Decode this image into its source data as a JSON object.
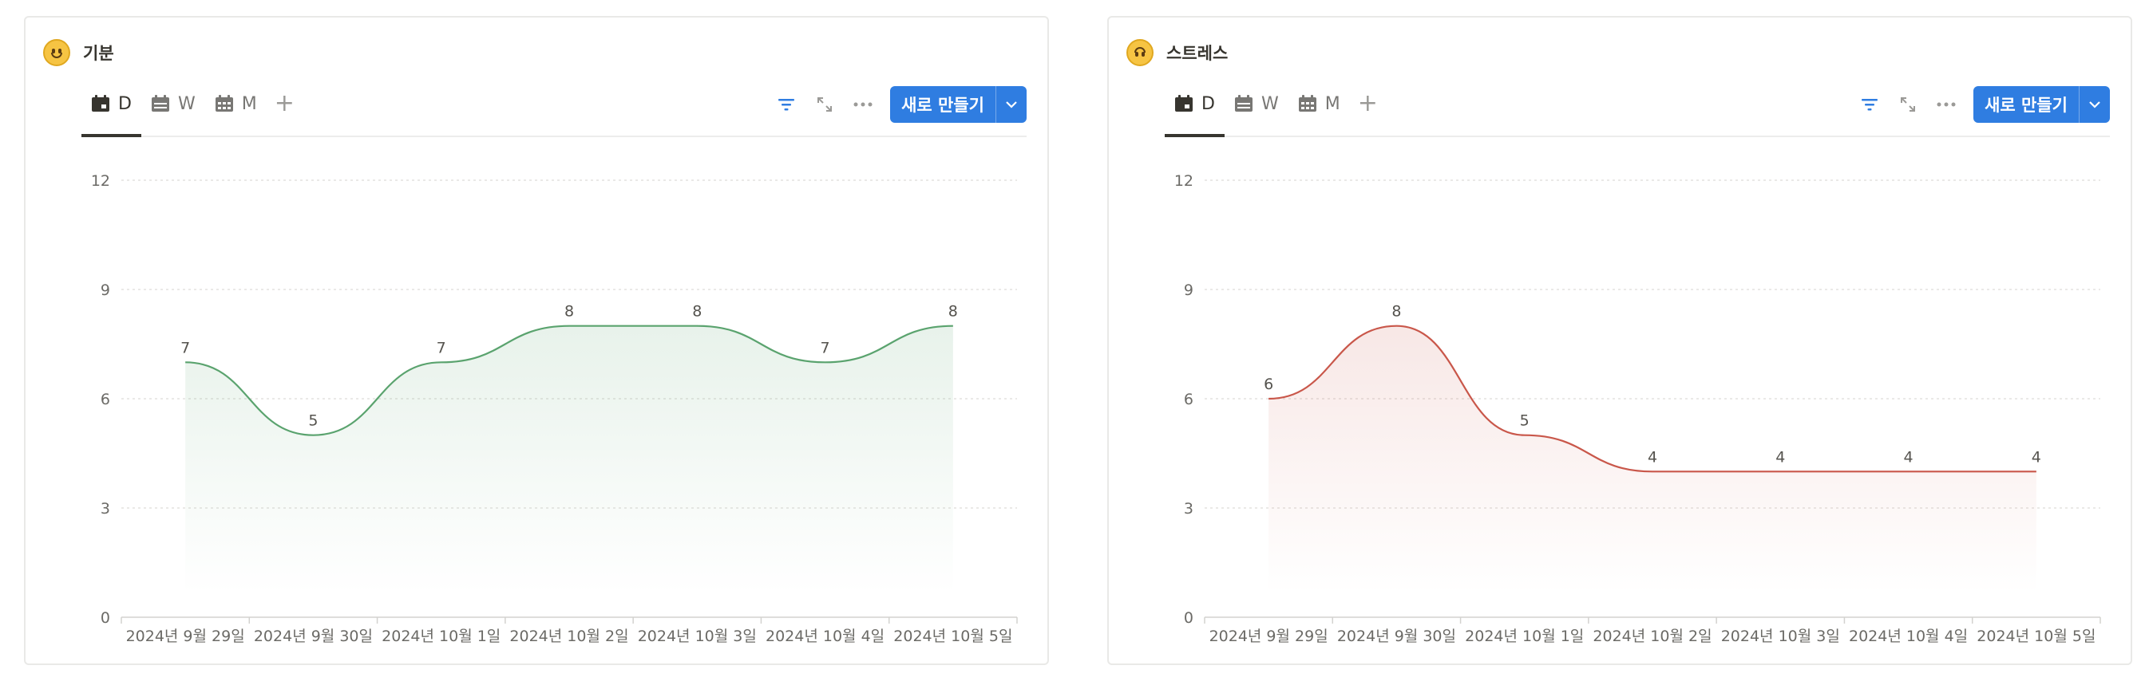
{
  "colors": {
    "accent": "#2f7de1",
    "mood_line": "#5aa36e",
    "stress_line": "#c9574a"
  },
  "cards": [
    {
      "emoji": "slightly-smiling-face",
      "title": "기분",
      "tabs": [
        {
          "label": "D",
          "icon": "calendar-day-icon"
        },
        {
          "label": "W",
          "icon": "calendar-week-icon"
        },
        {
          "label": "M",
          "icon": "calendar-month-icon"
        }
      ],
      "add_tab_label": "+",
      "new_button_label": "새로 만들기",
      "chart_data": {
        "type": "area",
        "categories": [
          "2024년 9월 29일",
          "2024년 9월 30일",
          "2024년 10월 1일",
          "2024년 10월 2일",
          "2024년 10월 3일",
          "2024년 10월 4일",
          "2024년 10월 5일"
        ],
        "values": [
          7,
          5,
          7,
          8,
          8,
          7,
          8
        ],
        "yticks": [
          0,
          3,
          6,
          9,
          12
        ],
        "ylim": [
          0,
          12
        ],
        "grid": true,
        "color": "#5aa36e"
      }
    },
    {
      "emoji": "upside-down-face",
      "title": "스트레스",
      "tabs": [
        {
          "label": "D",
          "icon": "calendar-day-icon"
        },
        {
          "label": "W",
          "icon": "calendar-week-icon"
        },
        {
          "label": "M",
          "icon": "calendar-month-icon"
        }
      ],
      "add_tab_label": "+",
      "new_button_label": "새로 만들기",
      "chart_data": {
        "type": "area",
        "categories": [
          "2024년 9월 29일",
          "2024년 9월 30일",
          "2024년 10월 1일",
          "2024년 10월 2일",
          "2024년 10월 3일",
          "2024년 10월 4일",
          "2024년 10월 5일"
        ],
        "values": [
          6,
          8,
          5,
          4,
          4,
          4,
          4
        ],
        "yticks": [
          0,
          3,
          6,
          9,
          12
        ],
        "ylim": [
          0,
          12
        ],
        "grid": true,
        "color": "#c9574a"
      }
    }
  ]
}
